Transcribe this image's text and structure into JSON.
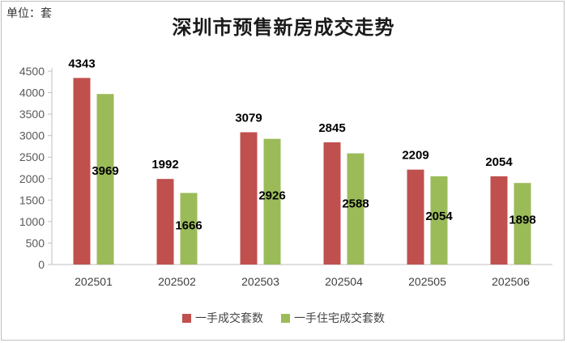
{
  "unit_label": "单位：套",
  "chart_data": {
    "type": "bar",
    "title": "深圳市预售新房成交走势",
    "categories": [
      "202501",
      "202502",
      "202503",
      "202504",
      "202505",
      "202506"
    ],
    "series": [
      {
        "name": "一手成交套数",
        "values": [
          4343,
          1992,
          3079,
          2845,
          2209,
          2054
        ],
        "color": "#c0504d"
      },
      {
        "name": "一手住宅成交套数",
        "values": [
          3969,
          1666,
          2926,
          2588,
          2054,
          1898
        ],
        "color": "#9bbb59"
      }
    ],
    "ylim": [
      0,
      4500
    ],
    "yticks": [
      0,
      500,
      1000,
      1500,
      2000,
      2500,
      3000,
      3500,
      4000,
      4500
    ],
    "grid": false,
    "legend_position": "bottom"
  }
}
